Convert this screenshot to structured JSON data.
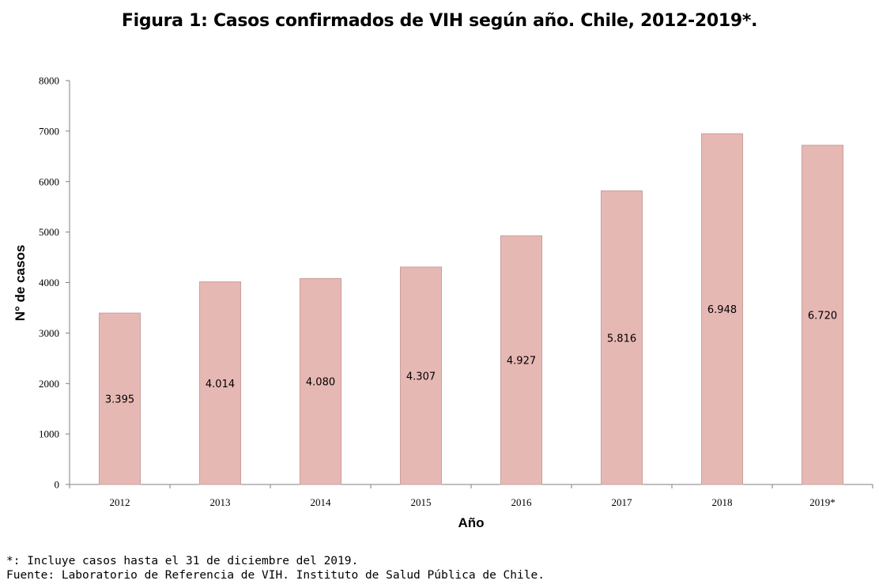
{
  "chart_data": {
    "type": "bar",
    "title": "Figura 1: Casos confirmados de VIH según año. Chile, 2012-2019*.",
    "xlabel": "Año",
    "ylabel": "N° de casos",
    "categories": [
      "2012",
      "2013",
      "2014",
      "2015",
      "2016",
      "2017",
      "2018",
      "2019*"
    ],
    "values": [
      3395,
      4014,
      4080,
      4307,
      4927,
      5816,
      6948,
      6720
    ],
    "data_labels": [
      "3.395",
      "4.014",
      "4.080",
      "4.307",
      "4.927",
      "5.816",
      "6.948",
      "6.720"
    ],
    "yticks": [
      0,
      1000,
      2000,
      3000,
      4000,
      5000,
      6000,
      7000,
      8000
    ],
    "ylim": [
      0,
      8000
    ],
    "grid": false,
    "legend": "none",
    "bar_color": "#e6b8b4",
    "bar_edge_color": "#c9a09c"
  },
  "footnotes": {
    "note": "*: Incluye casos hasta el 31 de diciembre del 2019.",
    "source": "Fuente: Laboratorio de Referencia de VIH. Instituto de Salud Pública de Chile."
  }
}
